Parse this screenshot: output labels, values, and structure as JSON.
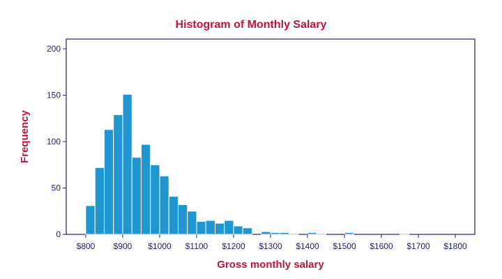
{
  "colors": {
    "title": "#c0143c",
    "axis": "#1f1f6e",
    "bar_fill": "#1f96cf",
    "bar_stroke": "#ffffff",
    "background": "#ffffff"
  },
  "chart_data": {
    "type": "bar",
    "title": "Histogram of Monthly Salary",
    "xlabel": "Gross monthly salary",
    "ylabel": "Frequency",
    "x_ticks": [
      {
        "value": 800,
        "label": "$800"
      },
      {
        "value": 900,
        "label": "$900"
      },
      {
        "value": 1000,
        "label": "$1000"
      },
      {
        "value": 1100,
        "label": "$1100"
      },
      {
        "value": 1200,
        "label": "$1200"
      },
      {
        "value": 1300,
        "label": "$1300"
      },
      {
        "value": 1400,
        "label": "$1400"
      },
      {
        "value": 1500,
        "label": "$1500"
      },
      {
        "value": 1600,
        "label": "$1600"
      },
      {
        "value": 1700,
        "label": "$1700"
      },
      {
        "value": 1800,
        "label": "$1800"
      }
    ],
    "y_ticks": [
      0,
      50,
      100,
      150,
      200
    ],
    "xlim": [
      800,
      1800
    ],
    "ylim": [
      0,
      200
    ],
    "grid": false,
    "bins": [
      {
        "start": 800,
        "end": 825,
        "count": 31
      },
      {
        "start": 825,
        "end": 850,
        "count": 72
      },
      {
        "start": 850,
        "end": 875,
        "count": 113
      },
      {
        "start": 875,
        "end": 900,
        "count": 129
      },
      {
        "start": 900,
        "end": 925,
        "count": 151
      },
      {
        "start": 925,
        "end": 950,
        "count": 83
      },
      {
        "start": 950,
        "end": 975,
        "count": 97
      },
      {
        "start": 975,
        "end": 1000,
        "count": 75
      },
      {
        "start": 1000,
        "end": 1025,
        "count": 63
      },
      {
        "start": 1025,
        "end": 1050,
        "count": 41
      },
      {
        "start": 1050,
        "end": 1075,
        "count": 32
      },
      {
        "start": 1075,
        "end": 1100,
        "count": 25
      },
      {
        "start": 1100,
        "end": 1125,
        "count": 14
      },
      {
        "start": 1125,
        "end": 1150,
        "count": 15
      },
      {
        "start": 1150,
        "end": 1175,
        "count": 12
      },
      {
        "start": 1175,
        "end": 1200,
        "count": 15
      },
      {
        "start": 1200,
        "end": 1225,
        "count": 9
      },
      {
        "start": 1225,
        "end": 1250,
        "count": 7
      },
      {
        "start": 1275,
        "end": 1300,
        "count": 3
      },
      {
        "start": 1300,
        "end": 1325,
        "count": 2
      },
      {
        "start": 1325,
        "end": 1350,
        "count": 2
      },
      {
        "start": 1350,
        "end": 1375,
        "count": 1
      },
      {
        "start": 1400,
        "end": 1425,
        "count": 2
      },
      {
        "start": 1425,
        "end": 1450,
        "count": 1
      },
      {
        "start": 1500,
        "end": 1525,
        "count": 2
      },
      {
        "start": 1650,
        "end": 1675,
        "count": 1
      }
    ]
  }
}
